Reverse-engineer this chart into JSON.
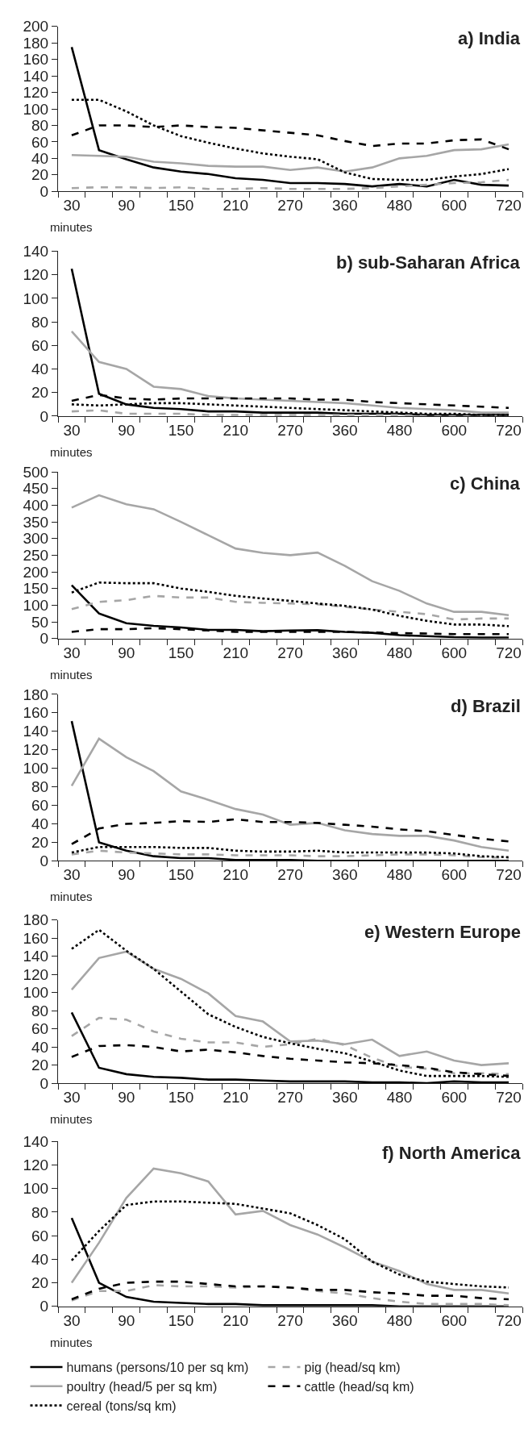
{
  "chart_data": [
    {
      "type": "line",
      "title": "a) India",
      "xlabel": "minutes",
      "categories": [
        "30",
        null,
        "90",
        null,
        "150",
        null,
        "210",
        null,
        "270",
        null,
        "360",
        null,
        "480",
        null,
        "600",
        null,
        "720"
      ],
      "ylim": [
        0,
        200
      ],
      "yticks": [
        0,
        20,
        40,
        60,
        80,
        100,
        120,
        140,
        160,
        180,
        200
      ],
      "series": [
        {
          "color": "#000000",
          "line_style": "solid",
          "values": [
            175,
            50,
            39,
            29,
            24,
            21,
            16,
            14,
            10,
            10,
            9,
            6,
            9,
            6,
            14,
            8,
            7
          ]
        },
        {
          "color": "#a6a6a6",
          "line_style": "dashed",
          "values": [
            4,
            5,
            5,
            4,
            5,
            3,
            3,
            4,
            3,
            3,
            3,
            4,
            6,
            8,
            10,
            11,
            14
          ]
        },
        {
          "color": "#a6a6a6",
          "line_style": "solid",
          "values": [
            44,
            43,
            42,
            36,
            34,
            31,
            30,
            30,
            26,
            29,
            24,
            29,
            40,
            43,
            50,
            51,
            57
          ]
        },
        {
          "color": "#000000",
          "line_style": "dashed",
          "values": [
            68,
            80,
            80,
            78,
            80,
            78,
            77,
            74,
            71,
            68,
            61,
            55,
            58,
            58,
            62,
            63,
            51
          ]
        },
        {
          "color": "#000000",
          "line_style": "dotted",
          "values": [
            111,
            111,
            97,
            80,
            67,
            59,
            52,
            46,
            42,
            39,
            23,
            15,
            14,
            14,
            18,
            21,
            27
          ]
        }
      ]
    },
    {
      "type": "line",
      "title": "b) sub-Saharan Africa",
      "xlabel": "minutes",
      "categories": [
        "30",
        null,
        "90",
        null,
        "150",
        null,
        "210",
        null,
        "270",
        null,
        "360",
        null,
        "480",
        null,
        "600",
        null,
        "720"
      ],
      "ylim": [
        0,
        140
      ],
      "yticks": [
        0,
        20,
        40,
        60,
        80,
        100,
        120,
        140
      ],
      "series": [
        {
          "color": "#000000",
          "line_style": "solid",
          "values": [
            125,
            19,
            10,
            7,
            6,
            4,
            4,
            3,
            3,
            3,
            2,
            2,
            2,
            1,
            1,
            1,
            1
          ]
        },
        {
          "color": "#a6a6a6",
          "line_style": "dashed",
          "values": [
            4,
            5,
            2,
            2,
            2,
            1,
            1,
            1,
            1,
            1,
            1,
            1,
            1,
            0,
            0,
            0,
            0
          ]
        },
        {
          "color": "#a6a6a6",
          "line_style": "solid",
          "values": [
            72,
            46,
            40,
            25,
            23,
            17,
            15,
            14,
            13,
            12,
            11,
            9,
            7,
            6,
            5,
            3,
            3
          ]
        },
        {
          "color": "#000000",
          "line_style": "dashed",
          "values": [
            13,
            18,
            15,
            14,
            15,
            15,
            15,
            15,
            15,
            14,
            14,
            12,
            11,
            10,
            9,
            8,
            7
          ]
        },
        {
          "color": "#000000",
          "line_style": "dotted",
          "values": [
            10,
            9,
            10,
            11,
            11,
            10,
            9,
            8,
            7,
            6,
            5,
            4,
            3,
            2,
            2,
            1,
            1
          ]
        }
      ]
    },
    {
      "type": "line",
      "title": "c) China",
      "xlabel": "minutes",
      "categories": [
        "30",
        null,
        "90",
        null,
        "150",
        null,
        "210",
        null,
        "270",
        null,
        "360",
        null,
        "480",
        null,
        "600",
        null,
        "720"
      ],
      "ylim": [
        0,
        500
      ],
      "yticks": [
        0,
        50,
        100,
        150,
        200,
        250,
        300,
        350,
        400,
        450,
        500
      ],
      "series": [
        {
          "color": "#000000",
          "line_style": "solid",
          "values": [
            160,
            75,
            46,
            38,
            33,
            26,
            26,
            22,
            24,
            25,
            20,
            17,
            10,
            7,
            4,
            3,
            3
          ]
        },
        {
          "color": "#a6a6a6",
          "line_style": "dashed",
          "values": [
            88,
            110,
            115,
            128,
            123,
            123,
            110,
            107,
            105,
            103,
            95,
            87,
            80,
            73,
            57,
            60,
            60
          ]
        },
        {
          "color": "#a6a6a6",
          "line_style": "solid",
          "values": [
            393,
            430,
            403,
            388,
            350,
            310,
            270,
            257,
            250,
            258,
            218,
            172,
            143,
            105,
            80,
            80,
            70
          ]
        },
        {
          "color": "#000000",
          "line_style": "dashed",
          "values": [
            20,
            28,
            28,
            31,
            28,
            24,
            20,
            20,
            20,
            20,
            20,
            18,
            16,
            15,
            13,
            13,
            13
          ]
        },
        {
          "color": "#000000",
          "line_style": "dotted",
          "values": [
            138,
            168,
            166,
            166,
            150,
            140,
            128,
            120,
            113,
            105,
            98,
            87,
            68,
            53,
            42,
            42,
            37
          ]
        }
      ]
    },
    {
      "type": "line",
      "title": "d) Brazil",
      "xlabel": "minutes",
      "categories": [
        "30",
        null,
        "90",
        null,
        "150",
        null,
        "210",
        null,
        "270",
        null,
        "360",
        null,
        "480",
        null,
        "600",
        null,
        "720"
      ],
      "ylim": [
        0,
        180
      ],
      "yticks": [
        0,
        20,
        40,
        60,
        80,
        100,
        120,
        140,
        160,
        180
      ],
      "series": [
        {
          "color": "#000000",
          "line_style": "solid",
          "values": [
            151,
            20,
            11,
            5,
            3,
            3,
            1,
            1,
            1,
            0,
            0,
            0,
            0,
            0,
            0,
            0,
            0
          ]
        },
        {
          "color": "#a6a6a6",
          "line_style": "dashed",
          "values": [
            7,
            11,
            9,
            8,
            7,
            7,
            6,
            6,
            6,
            5,
            5,
            6,
            7,
            7,
            6,
            4,
            3
          ]
        },
        {
          "color": "#a6a6a6",
          "line_style": "solid",
          "values": [
            81,
            132,
            112,
            97,
            75,
            66,
            56,
            50,
            39,
            41,
            33,
            29,
            27,
            27,
            22,
            15,
            11
          ]
        },
        {
          "color": "#000000",
          "line_style": "dashed",
          "values": [
            18,
            35,
            40,
            41,
            43,
            42,
            45,
            42,
            42,
            41,
            39,
            37,
            34,
            32,
            28,
            24,
            21
          ]
        },
        {
          "color": "#000000",
          "line_style": "dotted",
          "values": [
            9,
            15,
            15,
            15,
            14,
            14,
            11,
            10,
            10,
            11,
            9,
            9,
            9,
            9,
            8,
            5,
            4
          ]
        }
      ]
    },
    {
      "type": "line",
      "title": "e) Western Europe",
      "xlabel": "minutes",
      "categories": [
        "30",
        null,
        "90",
        null,
        "150",
        null,
        "210",
        null,
        "270",
        null,
        "360",
        null,
        "480",
        null,
        "600",
        null,
        "720"
      ],
      "ylim": [
        0,
        180
      ],
      "yticks": [
        0,
        20,
        40,
        60,
        80,
        100,
        120,
        140,
        160,
        180
      ],
      "series": [
        {
          "color": "#000000",
          "line_style": "solid",
          "values": [
            78,
            17,
            10,
            7,
            6,
            4,
            4,
            3,
            2,
            2,
            2,
            1,
            1,
            0,
            2,
            1,
            1
          ]
        },
        {
          "color": "#a6a6a6",
          "line_style": "dashed",
          "values": [
            52,
            72,
            70,
            57,
            49,
            45,
            45,
            40,
            43,
            49,
            42,
            28,
            18,
            16,
            11,
            11,
            10
          ]
        },
        {
          "color": "#a6a6a6",
          "line_style": "solid",
          "values": [
            103,
            138,
            145,
            126,
            115,
            99,
            74,
            68,
            46,
            47,
            43,
            48,
            30,
            35,
            25,
            20,
            22
          ]
        },
        {
          "color": "#000000",
          "line_style": "dashed",
          "values": [
            29,
            41,
            42,
            40,
            35,
            37,
            34,
            30,
            27,
            25,
            23,
            22,
            20,
            17,
            12,
            10,
            8
          ]
        },
        {
          "color": "#000000",
          "line_style": "dotted",
          "values": [
            148,
            169,
            146,
            126,
            101,
            76,
            62,
            51,
            44,
            38,
            33,
            24,
            14,
            8,
            8,
            8,
            7
          ]
        }
      ]
    },
    {
      "type": "line",
      "title": "f) North America",
      "xlabel": "minutes",
      "categories": [
        "30",
        null,
        "90",
        null,
        "150",
        null,
        "210",
        null,
        "270",
        null,
        "360",
        null,
        "480",
        null,
        "600",
        null,
        "720"
      ],
      "ylim": [
        0,
        140
      ],
      "yticks": [
        0,
        20,
        40,
        60,
        80,
        100,
        120,
        140
      ],
      "legend": "bottom",
      "series": [
        {
          "name": "humans (persons/10 per sq km)",
          "color": "#000000",
          "line_style": "solid",
          "values": [
            75,
            20,
            8,
            4,
            3,
            2,
            2,
            1,
            1,
            1,
            1,
            1,
            0,
            0,
            0,
            0,
            0
          ]
        },
        {
          "name": "pig (head/sq km)",
          "color": "#a6a6a6",
          "line_style": "dashed",
          "values": [
            5,
            13,
            13,
            18,
            17,
            17,
            16,
            17,
            16,
            13,
            11,
            7,
            4,
            2,
            2,
            2,
            1
          ]
        },
        {
          "name": "poultry (head/5 per sq km)",
          "color": "#a6a6a6",
          "line_style": "solid",
          "values": [
            20,
            54,
            92,
            117,
            113,
            106,
            78,
            81,
            69,
            61,
            50,
            38,
            30,
            19,
            14,
            14,
            11
          ]
        },
        {
          "name": "cattle (head/sq km)",
          "color": "#000000",
          "line_style": "dashed",
          "values": [
            6,
            15,
            20,
            21,
            21,
            19,
            17,
            17,
            16,
            14,
            14,
            12,
            11,
            9,
            9,
            7,
            6
          ]
        },
        {
          "name": "cereal (tons/sq km)",
          "color": "#000000",
          "line_style": "dotted",
          "values": [
            39,
            64,
            86,
            89,
            89,
            88,
            87,
            83,
            79,
            69,
            57,
            38,
            27,
            21,
            19,
            17,
            16
          ]
        }
      ]
    }
  ]
}
